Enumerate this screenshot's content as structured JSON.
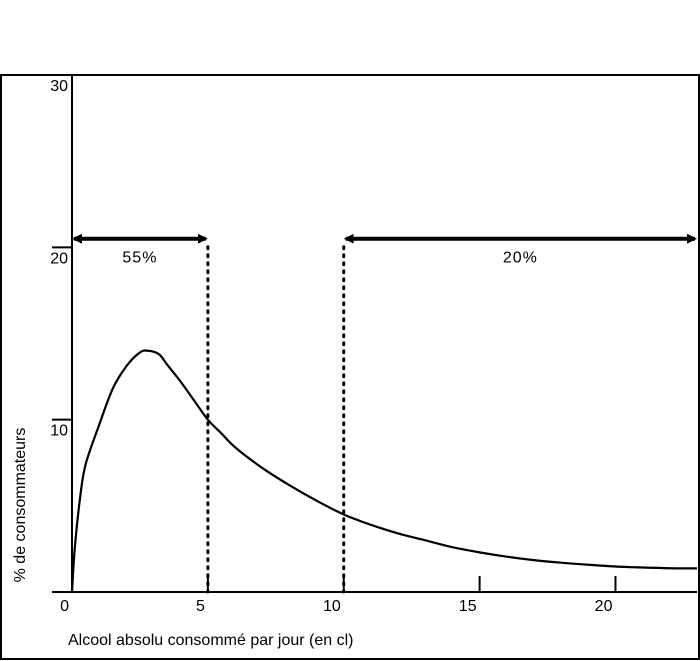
{
  "chart_data": {
    "type": "line",
    "title": "",
    "xlabel": "Alcool absolu consommé par jour (en cl)",
    "ylabel": "% de consommateurs",
    "xlim": [
      0,
      23
    ],
    "ylim": [
      0,
      30
    ],
    "x_ticks": [
      0,
      5,
      10,
      15,
      20
    ],
    "x_tick_labels": [
      "0",
      "5",
      "10",
      "15",
      "20"
    ],
    "y_ticks": [
      10,
      20,
      30
    ],
    "y_tick_labels": [
      "10",
      "20",
      "30"
    ],
    "grid": false,
    "legend": "none",
    "series": [
      {
        "x": [
          0,
          0.1,
          0.3,
          0.5,
          1,
          1.5,
          2,
          2.5,
          2.8,
          3.2,
          3.5,
          4,
          4.5,
          5,
          5.5,
          6,
          7,
          8,
          9,
          10,
          11,
          12,
          13,
          14,
          15,
          16,
          17,
          18,
          19,
          20,
          21,
          22,
          23
        ],
        "y": [
          0,
          2.5,
          5.5,
          7.4,
          9.7,
          11.8,
          13.1,
          13.9,
          14.0,
          13.8,
          13.2,
          12.2,
          11.1,
          10.0,
          9.2,
          8.4,
          7.2,
          6.2,
          5.3,
          4.5,
          3.9,
          3.4,
          3.0,
          2.6,
          2.3,
          2.05,
          1.85,
          1.7,
          1.58,
          1.48,
          1.42,
          1.38,
          1.37
        ]
      }
    ],
    "reference_lines": [
      {
        "x": 5,
        "style": "dotted"
      },
      {
        "x": 10,
        "style": "dotted"
      }
    ],
    "annotations": [
      {
        "label": "55%",
        "x_from": 0,
        "x_to": 5,
        "y": 20.5
      },
      {
        "label": "20%",
        "x_from": 10,
        "x_to": 23,
        "y": 20.5
      }
    ],
    "colors": {
      "line": "#000000",
      "background": "#ffffff"
    }
  }
}
